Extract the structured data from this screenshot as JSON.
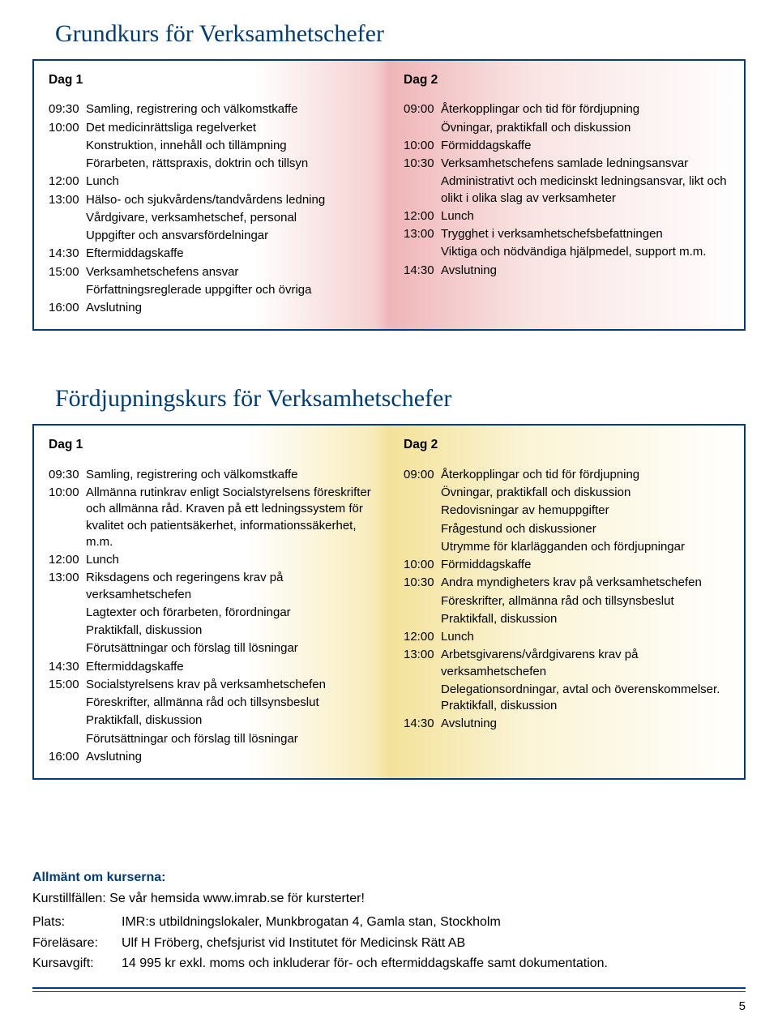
{
  "course1": {
    "title": "Grundkurs för Verksamhetschefer",
    "dag1": {
      "label": "Dag 1",
      "rows": [
        {
          "t": "09:30",
          "d": "Samling, registrering och välkomstkaffe"
        },
        {
          "t": "10:00",
          "d": "Det medicinrättsliga regelverket"
        },
        {
          "t": "",
          "d": "Konstruktion, innehåll och tillämpning"
        },
        {
          "t": "",
          "d": "Förarbeten, rättspraxis, doktrin och tillsyn"
        },
        {
          "t": "12:00",
          "d": "Lunch"
        },
        {
          "t": "13:00",
          "d": "Hälso- och sjukvårdens/tandvårdens ledning"
        },
        {
          "t": "",
          "d": "Vårdgivare, verksamhetschef, personal"
        },
        {
          "t": "",
          "d": "Uppgifter och ansvarsfördelningar"
        },
        {
          "t": "14:30",
          "d": "Eftermiddagskaffe"
        },
        {
          "t": "15:00",
          "d": "Verksamhetschefens ansvar"
        },
        {
          "t": "",
          "d": "Författningsreglerade uppgifter och övriga"
        },
        {
          "t": "16:00",
          "d": "Avslutning"
        }
      ]
    },
    "dag2": {
      "label": "Dag 2",
      "rows": [
        {
          "t": "09:00",
          "d": "Återkopplingar och tid för fördjupning"
        },
        {
          "t": "",
          "d": "Övningar, praktikfall och diskussion"
        },
        {
          "t": "10:00",
          "d": "Förmiddagskaffe"
        },
        {
          "t": "10:30",
          "d": "Verksamhetschefens samlade lednings­ansvar"
        },
        {
          "t": "",
          "d": "Administrativt och medicinskt lednings­ansvar, likt och olikt i olika slag av verksamheter"
        },
        {
          "t": "12:00",
          "d": "Lunch"
        },
        {
          "t": "13:00",
          "d": "Trygghet i verksamhetschefsbefatt­ningen"
        },
        {
          "t": "",
          "d": "Viktiga och nödvändiga hjälpmedel, support m.m."
        },
        {
          "t": "14:30",
          "d": "Avslutning"
        }
      ]
    }
  },
  "course2": {
    "title": "Fördjupningskurs för Verksamhetschefer",
    "dag1": {
      "label": "Dag 1",
      "rows": [
        {
          "t": "09:30",
          "d": "Samling, registrering och välkomstkaffe"
        },
        {
          "t": "10:00",
          "d": "Allmänna rutinkrav enligt Socialstyrelsens föreskrifter och allmänna råd. Kraven på ett ledningssystem för kvalitet och patientsäkerhet, informationssäkerhet, m.m."
        },
        {
          "t": "12:00",
          "d": "Lunch"
        },
        {
          "t": "13:00",
          "d": "Riksdagens och regeringens krav på verksamhetschefen"
        },
        {
          "t": "",
          "d": "Lagtexter och förarbeten, förordningar"
        },
        {
          "t": "",
          "d": "Praktikfall, diskussion"
        },
        {
          "t": "",
          "d": "Förutsättningar och förslag till lösningar"
        },
        {
          "t": "14:30",
          "d": "Eftermiddagskaffe"
        },
        {
          "t": "15:00",
          "d": "Socialstyrelsens krav på verksamhetschefen"
        },
        {
          "t": "",
          "d": "Föreskrifter, allmänna råd och tillsynsbeslut"
        },
        {
          "t": "",
          "d": "Praktikfall, diskussion"
        },
        {
          "t": "",
          "d": "Förutsättningar och förslag till lösningar"
        },
        {
          "t": "16:00",
          "d": "Avslutning"
        }
      ]
    },
    "dag2": {
      "label": "Dag 2",
      "rows": [
        {
          "t": "09:00",
          "d": "Återkopplingar och tid för fördjupning"
        },
        {
          "t": "",
          "d": "Övningar, praktikfall och diskussion"
        },
        {
          "t": "",
          "d": "Redovisningar av hemuppgifter"
        },
        {
          "t": "",
          "d": "Frågestund och diskussioner"
        },
        {
          "t": "",
          "d": "Utrymme för klarlägganden och fördjupningar"
        },
        {
          "t": "10:00",
          "d": "Förmiddagskaffe"
        },
        {
          "t": "10:30",
          "d": "Andra myndigheters krav på verksamhets­chefen"
        },
        {
          "t": "",
          "d": "Föreskrifter, allmänna råd och tillsyns­beslut"
        },
        {
          "t": "",
          "d": "Praktikfall, diskussion"
        },
        {
          "t": "12:00",
          "d": "Lunch"
        },
        {
          "t": "13:00",
          "d": "Arbetsgivarens/vårdgivarens krav på verksamhetschefen"
        },
        {
          "t": "",
          "d": "Delegationsordningar, avtal och överenskommelser. Praktikfall, diskussion"
        },
        {
          "t": "14:30",
          "d": "Avslutning"
        }
      ]
    }
  },
  "footer": {
    "head": "Allmänt om kurserna:",
    "line1": "Kurstillfällen: Se vår hemsida www.imrab.se för kursterter!",
    "rows": [
      {
        "label": "Plats:",
        "val": "IMR:s utbildningslokaler, Munkbrogatan 4, Gamla stan, Stockholm"
      },
      {
        "label": "Föreläsare:",
        "val": "Ulf H Fröberg, chefsjurist vid Institutet för Medicinsk Rätt AB"
      },
      {
        "label": "Kursavgift:",
        "val": "14 995 kr exkl. moms och inkluderar för- och eftermiddagskaffe samt dokumentation."
      }
    ]
  },
  "page_number": "5",
  "colors": {
    "brand_blue": "#003c78"
  }
}
